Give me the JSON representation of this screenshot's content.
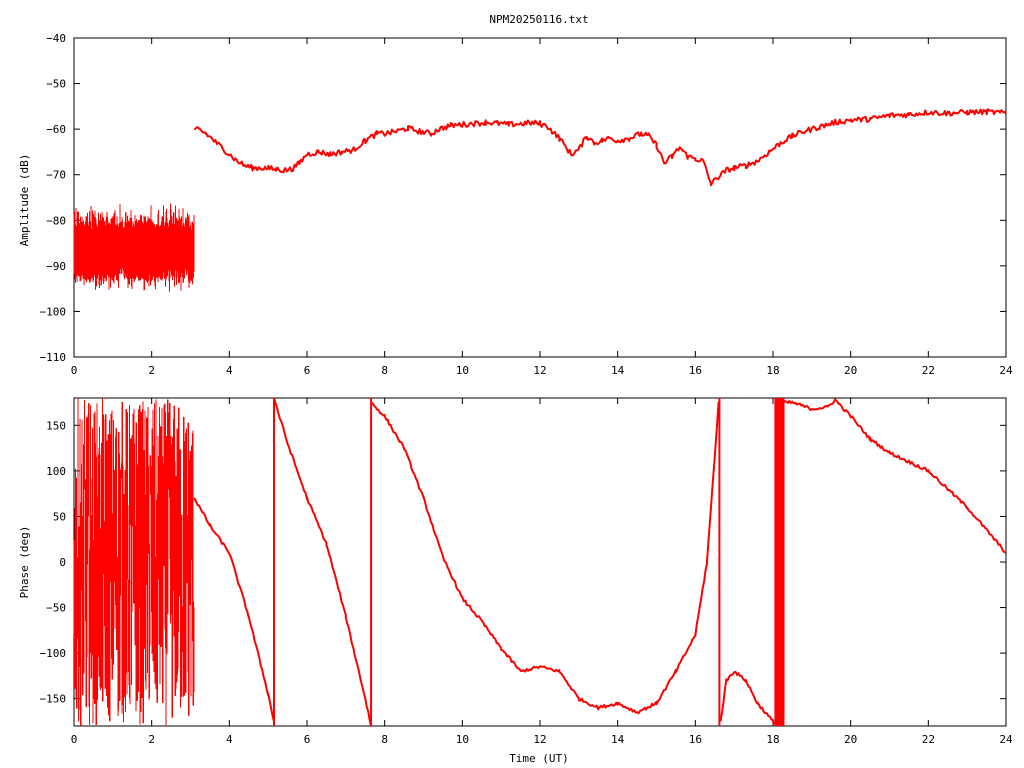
{
  "chart_data": [
    {
      "type": "line",
      "title": "NPM20250116.txt",
      "xlabel": "",
      "ylabel": "Amplitude (dB)",
      "xlim": [
        0,
        24
      ],
      "ylim": [
        -110,
        -40
      ],
      "xticks": [
        0,
        2,
        4,
        6,
        8,
        10,
        12,
        14,
        16,
        18,
        20,
        22,
        24
      ],
      "yticks": [
        -40,
        -50,
        -60,
        -70,
        -80,
        -90,
        -100,
        -110
      ],
      "grid": false,
      "line_color": "#ff0000",
      "series": [
        {
          "noise_band": {
            "x_start": 0.0,
            "x_end": 3.1,
            "y_low": -93,
            "y_high": -80,
            "y_min_spike": -97,
            "y_max_spike": -75
          },
          "x": [
            3.1,
            3.2,
            3.4,
            3.6,
            3.8,
            4.0,
            4.2,
            4.4,
            4.6,
            4.8,
            5.0,
            5.2,
            5.4,
            5.6,
            5.8,
            6.0,
            6.3,
            6.6,
            6.9,
            7.2,
            7.5,
            7.8,
            8.0,
            8.3,
            8.6,
            8.9,
            9.2,
            9.4,
            9.7,
            10.0,
            10.3,
            10.6,
            10.9,
            11.2,
            11.5,
            11.8,
            12.0,
            12.2,
            12.5,
            12.8,
            13.0,
            13.2,
            13.4,
            13.6,
            13.8,
            14.0,
            14.3,
            14.6,
            14.8,
            15.0,
            15.2,
            15.4,
            15.6,
            15.8,
            16.0,
            16.2,
            16.4,
            16.6,
            16.8,
            17.0,
            17.3,
            17.6,
            17.9,
            18.2,
            18.5,
            18.8,
            19.2,
            19.6,
            20.0,
            20.5,
            21.0,
            21.5,
            22.0,
            22.5,
            23.0,
            23.5,
            24.0
          ],
          "y": [
            -60.5,
            -60.0,
            -61.0,
            -62.5,
            -64.0,
            -65.5,
            -67.0,
            -68.0,
            -68.5,
            -68.5,
            -68.6,
            -68.8,
            -69.0,
            -68.8,
            -67.5,
            -65.5,
            -65.0,
            -65.5,
            -65.0,
            -64.5,
            -62.5,
            -61.0,
            -61.0,
            -60.5,
            -59.8,
            -60.5,
            -61.0,
            -60.0,
            -59.2,
            -59.0,
            -58.8,
            -58.5,
            -58.7,
            -59.0,
            -58.8,
            -58.6,
            -58.8,
            -59.5,
            -62.0,
            -65.5,
            -64.5,
            -61.5,
            -63.0,
            -62.5,
            -62.0,
            -62.5,
            -62.0,
            -61.0,
            -61.5,
            -63.5,
            -67.5,
            -66.0,
            -64.0,
            -66.0,
            -66.5,
            -67.0,
            -72.0,
            -70.5,
            -69.0,
            -68.5,
            -68.0,
            -67.0,
            -65.0,
            -63.0,
            -61.5,
            -60.5,
            -59.5,
            -58.5,
            -58.0,
            -57.8,
            -57.0,
            -56.8,
            -56.3,
            -56.5,
            -56.3,
            -56.2,
            -56.5
          ]
        }
      ]
    },
    {
      "type": "line",
      "title": "",
      "xlabel": "Time (UT)",
      "ylabel": "Phase (deg)",
      "xlim": [
        0,
        24
      ],
      "ylim": [
        -180,
        180
      ],
      "xticks": [
        0,
        2,
        4,
        6,
        8,
        10,
        12,
        14,
        16,
        18,
        20,
        22,
        24
      ],
      "yticks": [
        150,
        100,
        50,
        0,
        -50,
        -100,
        -150
      ],
      "grid": false,
      "line_color": "#ff0000",
      "series": [
        {
          "noise_band": {
            "x_start": 0.0,
            "x_end": 3.1,
            "y_low": -180,
            "y_high": 180
          },
          "segments": [
            {
              "x": [
                3.1,
                3.5,
                4.0,
                4.5,
                5.0,
                5.15
              ],
              "y": [
                70,
                40,
                10,
                -60,
                -145,
                -175
              ]
            },
            {
              "x": [
                5.15,
                5.5,
                6.0,
                6.5,
                7.0,
                7.5,
                7.65
              ],
              "y": [
                180,
                130,
                70,
                20,
                -60,
                -150,
                -180
              ]
            },
            {
              "x": [
                7.65,
                8.0,
                8.5,
                9.0,
                9.5,
                10.0,
                10.5,
                11.0,
                11.5,
                12.0,
                12.5,
                13.0,
                13.5,
                14.0,
                14.5,
                15.0,
                15.5,
                16.0,
                16.3,
                16.6
              ],
              "y": [
                175,
                160,
                125,
                70,
                5,
                -40,
                -65,
                -95,
                -120,
                -115,
                -120,
                -150,
                -160,
                -155,
                -165,
                -155,
                -120,
                -80,
                0,
                175
              ]
            },
            {
              "x": [
                16.65,
                16.8,
                17.0,
                17.3,
                17.6,
                18.0,
                18.2
              ],
              "y": [
                -175,
                -130,
                -120,
                -130,
                -155,
                -175,
                -178
              ]
            },
            {
              "x": [
                18.2,
                18.5,
                19.0,
                19.4,
                19.6,
                20.0,
                20.5,
                21.0,
                22.0,
                23.0,
                24.0
              ],
              "y": [
                175,
                175,
                168,
                170,
                178,
                160,
                135,
                120,
                100,
                60,
                10
              ]
            }
          ],
          "vertical_jumps": [
            5.15,
            7.65,
            16.62
          ],
          "dense_band": {
            "x_start": 18.05,
            "x_end": 18.3
          }
        }
      ]
    }
  ]
}
